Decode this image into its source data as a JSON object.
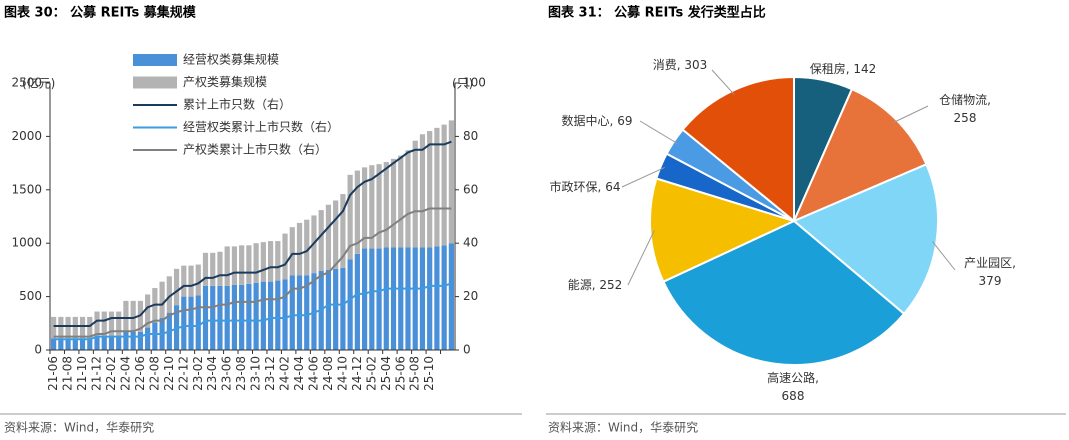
{
  "chart_data": [
    {
      "type": "bar",
      "stacked": true,
      "title": "图表 30： 公募 REITs 募集规模",
      "y_label": "(亿元)",
      "y2_label": "(只)",
      "categories": [
        "21-06",
        null,
        "21-08",
        null,
        "21-10",
        null,
        "21-12",
        null,
        "22-02",
        null,
        "22-04",
        null,
        "22-06",
        null,
        "22-08",
        null,
        "22-10",
        null,
        "22-12",
        null,
        "23-02",
        null,
        "23-04",
        null,
        "23-06",
        null,
        "23-08",
        null,
        "23-10",
        null,
        "23-12",
        null,
        "24-02",
        null,
        "24-04",
        null,
        "24-06",
        null,
        "24-08",
        null,
        "24-10",
        null,
        "24-12",
        null,
        "25-02",
        null,
        "25-04",
        null,
        "25-06",
        null,
        "25-08",
        null,
        "25-10",
        null,
        null,
        null
      ],
      "series": [
        {
          "name": "经营权类募集规模",
          "type": "bar",
          "color": "#4a90d9",
          "values": [
            110,
            110,
            110,
            110,
            110,
            110,
            130,
            130,
            130,
            130,
            170,
            170,
            170,
            210,
            260,
            300,
            350,
            420,
            500,
            500,
            510,
            600,
            600,
            600,
            600,
            610,
            610,
            620,
            630,
            640,
            640,
            650,
            660,
            700,
            700,
            700,
            720,
            740,
            750,
            760,
            770,
            850,
            900,
            950,
            950,
            950,
            960,
            960,
            960,
            960,
            960,
            960,
            960,
            970,
            980,
            1000
          ]
        },
        {
          "name": "产权类募集规模",
          "type": "bar",
          "color": "#b3b3b3",
          "values": [
            200,
            200,
            200,
            200,
            200,
            200,
            230,
            230,
            230,
            230,
            290,
            290,
            290,
            310,
            320,
            340,
            340,
            340,
            290,
            290,
            290,
            310,
            310,
            320,
            370,
            360,
            370,
            360,
            370,
            370,
            380,
            370,
            430,
            450,
            490,
            520,
            540,
            570,
            610,
            640,
            690,
            790,
            780,
            760,
            780,
            790,
            800,
            830,
            860,
            910,
            1000,
            1060,
            1090,
            1110,
            1130,
            1150
          ]
        },
        {
          "name": "累计上市只数（右）",
          "type": "line",
          "axis": "y2",
          "color": "#1b3a5c",
          "values": [
            9,
            9,
            9,
            9,
            9,
            9,
            11,
            11,
            12,
            12,
            12,
            12,
            13,
            16,
            17,
            17,
            20,
            22,
            24,
            24,
            25,
            27,
            27,
            28,
            28,
            29,
            29,
            29,
            29,
            30,
            31,
            31,
            32,
            36,
            36,
            37,
            40,
            43,
            46,
            49,
            52,
            58,
            61,
            63,
            64,
            66,
            68,
            70,
            72,
            74,
            75,
            75,
            77,
            77,
            77,
            78
          ]
        },
        {
          "name": "经营权类累计上市只数（右）",
          "type": "line",
          "axis": "y2",
          "color": "#3d9be0",
          "values": [
            4,
            4,
            4,
            4,
            4,
            4,
            5,
            5,
            5,
            5,
            5,
            5,
            5,
            6,
            6,
            6,
            7,
            8,
            9,
            9,
            9,
            11,
            11,
            11,
            11,
            11,
            11,
            11,
            11,
            11,
            12,
            12,
            12,
            13,
            13,
            13,
            14,
            15,
            17,
            17,
            17,
            19,
            21,
            21,
            22,
            22,
            23,
            23,
            23,
            23,
            23,
            23,
            24,
            24,
            24,
            25
          ]
        },
        {
          "name": "产权类累计上市只数（右）",
          "type": "line",
          "axis": "y2",
          "color": "#808080",
          "values": [
            5,
            5,
            5,
            5,
            5,
            5,
            6,
            6,
            7,
            7,
            7,
            7,
            8,
            10,
            11,
            11,
            13,
            14,
            15,
            15,
            16,
            16,
            16,
            17,
            17,
            18,
            18,
            18,
            18,
            19,
            19,
            19,
            20,
            23,
            23,
            24,
            26,
            28,
            29,
            32,
            35,
            39,
            40,
            42,
            42,
            44,
            45,
            47,
            49,
            51,
            52,
            52,
            53,
            53,
            53,
            53
          ]
        }
      ],
      "ylim": [
        0,
        2500
      ],
      "yticks": [
        0,
        500,
        1000,
        1500,
        2000,
        2500
      ],
      "y2lim": [
        0,
        100
      ],
      "y2ticks": [
        0,
        20,
        40,
        60,
        80,
        100
      ],
      "legend": "top",
      "source": "资料来源：Wind，华泰研究"
    },
    {
      "type": "pie",
      "title": "图表 31： 公募 REITs 发行类型占比",
      "categories": [
        "保租房",
        "仓储物流",
        "产业园区",
        "高速公路",
        "能源",
        "市政环保",
        "数据中心",
        "消费"
      ],
      "values": [
        142,
        258,
        379,
        688,
        252,
        64,
        69,
        303
      ],
      "colors": [
        "#17607d",
        "#e8733a",
        "#80d6f7",
        "#1b9fd9",
        "#f5bf00",
        "#1766c9",
        "#4a9be3",
        "#e14f09"
      ],
      "source": "资料来源：Wind，华泰研究"
    }
  ]
}
